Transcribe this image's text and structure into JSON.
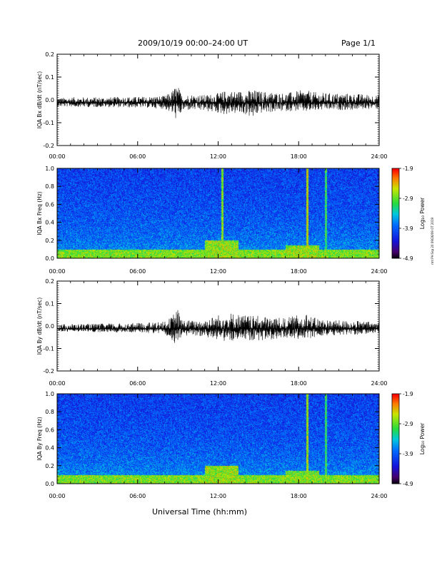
{
  "header": {
    "title": "2009/10/19   00:00–24:00 UT",
    "page": "Page 1/1"
  },
  "side_stamp": "rmt PH Ssp 20 09/26/09 OT 2019",
  "chart_data": [
    {
      "type": "line",
      "ylabel": "IQA Bx dB/dt (nT/sec)",
      "xlabel": "",
      "x_ticks": [
        "00:00",
        "06:00",
        "12:00",
        "18:00",
        "24:00"
      ],
      "y_ticks": [
        "0.2",
        "0.1",
        "0.0",
        "-0.1",
        "-0.2"
      ],
      "xlim": [
        0,
        24
      ],
      "ylim": [
        -0.2,
        0.2
      ],
      "series": [
        {
          "x": [
            0,
            1,
            2,
            3,
            4,
            5,
            6,
            7,
            8,
            8.5,
            8.8,
            9.0,
            9.3,
            10,
            11,
            12,
            12.5,
            13,
            14,
            14.6,
            15,
            16,
            17,
            18,
            18.5,
            19,
            20,
            21,
            22,
            23,
            24
          ],
          "y_max": [
            0.008,
            0.012,
            0.012,
            0.012,
            0.012,
            0.014,
            0.014,
            0.016,
            0.018,
            0.035,
            0.06,
            0.065,
            0.02,
            0.025,
            0.022,
            0.03,
            0.04,
            0.04,
            0.04,
            0.045,
            0.04,
            0.035,
            0.03,
            0.04,
            0.045,
            0.035,
            0.03,
            0.03,
            0.028,
            0.025,
            0.02
          ],
          "y_min": [
            -0.03,
            -0.03,
            -0.032,
            -0.032,
            -0.032,
            -0.034,
            -0.034,
            -0.036,
            -0.04,
            -0.06,
            -0.08,
            -0.1,
            -0.05,
            -0.045,
            -0.05,
            -0.06,
            -0.065,
            -0.06,
            -0.065,
            -0.085,
            -0.06,
            -0.055,
            -0.05,
            -0.05,
            -0.055,
            -0.05,
            -0.045,
            -0.045,
            -0.045,
            -0.04,
            -0.04
          ]
        }
      ]
    },
    {
      "type": "heatmap",
      "ylabel": "IQA Bx Freq (Hz)",
      "colorbar_label": "Log₁₀ Power",
      "x_ticks": [
        "00:00",
        "06:00",
        "12:00",
        "18:00",
        "24:00"
      ],
      "y_ticks": [
        "1.0",
        "0.8",
        "0.6",
        "0.4",
        "0.2",
        "0.0"
      ],
      "colorbar_ticks": [
        "-1.9",
        "-2.9",
        "-3.9",
        "-4.9"
      ],
      "xlim": [
        0,
        24
      ],
      "ylim": [
        0,
        1.0
      ],
      "zlim": [
        -4.9,
        -1.9
      ],
      "features": [
        {
          "kind": "vertical-line",
          "t": 12.3,
          "power": -2.8
        },
        {
          "kind": "vertical-line",
          "t": 18.6,
          "power": -2.6
        },
        {
          "kind": "vertical-line",
          "t": 20.0,
          "power": -3.1
        },
        {
          "kind": "low-frequency-band",
          "f_max": 0.1,
          "power": -2.8
        },
        {
          "kind": "enhancement",
          "t_start": 11.0,
          "t_end": 13.5,
          "f_max": 0.2,
          "power": -2.6
        },
        {
          "kind": "enhancement",
          "t_start": 17.0,
          "t_end": 19.5,
          "f_max": 0.15,
          "power": -2.6
        }
      ]
    },
    {
      "type": "line",
      "ylabel": "IQA By dB/dt (nT/sec)",
      "xlabel": "",
      "x_ticks": [
        "00:00",
        "06:00",
        "12:00",
        "18:00",
        "24:00"
      ],
      "y_ticks": [
        "0.2",
        "0.1",
        "0.0",
        "-0.1",
        "-0.2"
      ],
      "xlim": [
        0,
        24
      ],
      "ylim": [
        -0.2,
        0.2
      ],
      "series": [
        {
          "x": [
            0,
            1,
            2,
            3,
            4,
            5,
            6,
            7,
            8,
            8.5,
            8.8,
            9.0,
            9.3,
            10,
            11,
            12,
            12.5,
            13,
            14,
            14.6,
            15,
            16,
            17,
            18,
            18.5,
            19,
            20,
            21,
            22,
            23,
            24
          ],
          "y_max": [
            0.008,
            0.01,
            0.01,
            0.01,
            0.012,
            0.012,
            0.014,
            0.016,
            0.02,
            0.04,
            0.07,
            0.075,
            0.03,
            0.025,
            0.03,
            0.05,
            0.07,
            0.06,
            0.05,
            0.045,
            0.045,
            0.04,
            0.035,
            0.05,
            0.065,
            0.04,
            0.03,
            0.025,
            0.025,
            0.02,
            0.02
          ],
          "y_min": [
            -0.025,
            -0.025,
            -0.025,
            -0.028,
            -0.028,
            -0.03,
            -0.03,
            -0.032,
            -0.04,
            -0.06,
            -0.08,
            -0.085,
            -0.05,
            -0.04,
            -0.05,
            -0.06,
            -0.07,
            -0.065,
            -0.06,
            -0.07,
            -0.065,
            -0.06,
            -0.055,
            -0.06,
            -0.07,
            -0.05,
            -0.045,
            -0.04,
            -0.04,
            -0.035,
            -0.03
          ]
        }
      ]
    },
    {
      "type": "heatmap",
      "ylabel": "IQA By Freq (Hz)",
      "xlabel": "Universal Time (hh:mm)",
      "colorbar_label": "Log₁₀ Power",
      "x_ticks": [
        "00:00",
        "06:00",
        "12:00",
        "18:00",
        "24:00"
      ],
      "y_ticks": [
        "1.0",
        "0.8",
        "0.6",
        "0.4",
        "0.2",
        "0.0"
      ],
      "colorbar_ticks": [
        "-1.9",
        "-2.9",
        "-3.9",
        "-4.9"
      ],
      "xlim": [
        0,
        24
      ],
      "ylim": [
        0,
        1.0
      ],
      "zlim": [
        -4.9,
        -1.9
      ],
      "features": [
        {
          "kind": "vertical-line",
          "t": 18.6,
          "power": -2.7
        },
        {
          "kind": "vertical-line",
          "t": 20.0,
          "power": -3.1
        },
        {
          "kind": "low-frequency-band",
          "f_max": 0.1,
          "power": -2.8
        },
        {
          "kind": "enhancement",
          "t_start": 11.0,
          "t_end": 13.5,
          "f_max": 0.2,
          "power": -2.6
        },
        {
          "kind": "enhancement",
          "t_start": 17.0,
          "t_end": 19.5,
          "f_max": 0.15,
          "power": -2.7
        }
      ]
    }
  ]
}
